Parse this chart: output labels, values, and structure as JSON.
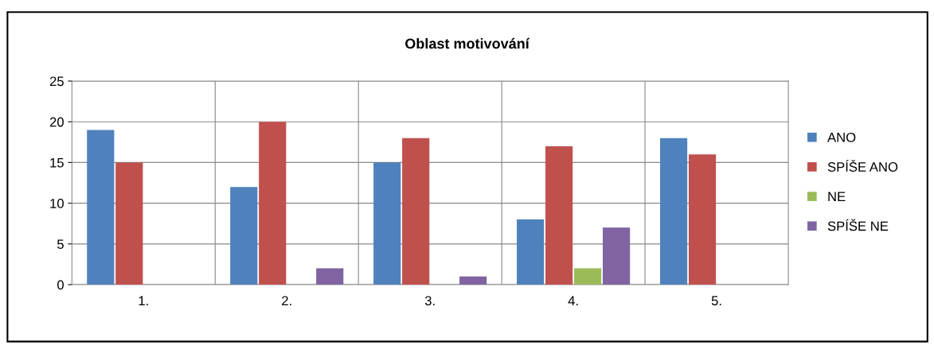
{
  "chart_data": {
    "type": "bar",
    "title": "Oblast motivování",
    "categories": [
      "1.",
      "2.",
      "3.",
      "4.",
      "5."
    ],
    "series": [
      {
        "name": "ANO",
        "color": "#4f81bd",
        "values": [
          19,
          12,
          15,
          8,
          18
        ]
      },
      {
        "name": "SPÍŠE ANO",
        "color": "#c0504d",
        "values": [
          15,
          20,
          18,
          17,
          16
        ]
      },
      {
        "name": "NE",
        "color": "#9bbb59",
        "values": [
          0,
          0,
          0,
          2,
          0
        ]
      },
      {
        "name": "SPÍŠE NE",
        "color": "#8064a2",
        "values": [
          0,
          2,
          1,
          7,
          0
        ]
      }
    ],
    "ylim": [
      0,
      25
    ],
    "yticks": [
      0,
      5,
      10,
      15,
      20,
      25
    ],
    "grid": true,
    "legend": "right"
  }
}
